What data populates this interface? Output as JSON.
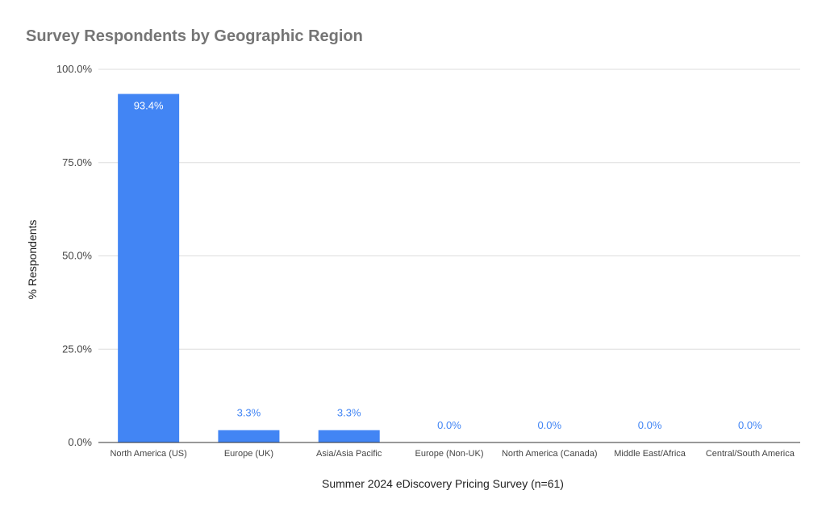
{
  "chart_data": {
    "type": "bar",
    "title": "Survey Respondents by Geographic Region",
    "xlabel": "Summer 2024 eDiscovery Pricing Survey (n=61)",
    "ylabel": "% Respondents",
    "categories": [
      "North America (US)",
      "Europe (UK)",
      "Asia/Asia Pacific",
      "Europe (Non-UK)",
      "North America (Canada)",
      "Middle East/Africa",
      "Central/South America"
    ],
    "values": [
      93.4,
      3.3,
      3.3,
      0.0,
      0.0,
      0.0,
      0.0
    ],
    "value_labels": [
      "93.4%",
      "3.3%",
      "3.3%",
      "0.0%",
      "0.0%",
      "0.0%",
      "0.0%"
    ],
    "yticks": [
      0,
      25,
      50,
      75,
      100
    ],
    "ytick_labels": [
      "0.0%",
      "25.0%",
      "50.0%",
      "75.0%",
      "100.0%"
    ],
    "ylim": [
      0,
      100
    ],
    "grid": true,
    "legend": "none",
    "bar_color": "#4285f4"
  }
}
